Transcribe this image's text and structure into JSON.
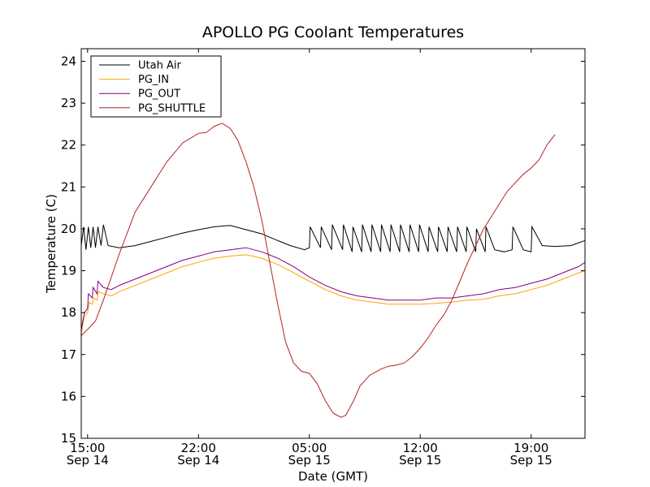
{
  "chart_data": {
    "type": "line",
    "title": "APOLLO PG Coolant Temperatures",
    "xlabel": "Date (GMT)",
    "ylabel": "Temperature (C)",
    "x_unit": "hours since Sep 14 14:00 GMT",
    "xlim": [
      0.6,
      32.4
    ],
    "ylim": [
      15,
      24.3
    ],
    "yticks": [
      15,
      16,
      17,
      18,
      19,
      20,
      21,
      22,
      23,
      24
    ],
    "xticks": [
      {
        "x": 1,
        "time": "15:00",
        "date": "Sep 14"
      },
      {
        "x": 8,
        "time": "22:00",
        "date": "Sep 14"
      },
      {
        "x": 15,
        "time": "05:00",
        "date": "Sep 15"
      },
      {
        "x": 22,
        "time": "12:00",
        "date": "Sep 15"
      },
      {
        "x": 29,
        "time": "19:00",
        "date": "Sep 15"
      }
    ],
    "legend_position": "top-left",
    "series": [
      {
        "name": "Utah Air",
        "color": "#000000",
        "points": [
          [
            0.6,
            19.6
          ],
          [
            0.75,
            20.05
          ],
          [
            0.9,
            19.5
          ],
          [
            1.05,
            20.05
          ],
          [
            1.2,
            19.55
          ],
          [
            1.35,
            20.05
          ],
          [
            1.5,
            19.55
          ],
          [
            1.65,
            20.05
          ],
          [
            1.85,
            19.6
          ],
          [
            2.0,
            20.1
          ],
          [
            2.3,
            19.6
          ],
          [
            3,
            19.55
          ],
          [
            4,
            19.6
          ],
          [
            5,
            19.7
          ],
          [
            6,
            19.8
          ],
          [
            7,
            19.9
          ],
          [
            8,
            19.98
          ],
          [
            9,
            20.05
          ],
          [
            10,
            20.08
          ],
          [
            11,
            19.98
          ],
          [
            12,
            19.88
          ],
          [
            13,
            19.72
          ],
          [
            13.8,
            19.6
          ],
          [
            14.7,
            19.5
          ],
          [
            15.0,
            19.55
          ],
          [
            15.05,
            20.05
          ],
          [
            15.7,
            19.55
          ],
          [
            15.75,
            20.05
          ],
          [
            16.4,
            19.5
          ],
          [
            16.45,
            20.1
          ],
          [
            17.1,
            19.5
          ],
          [
            17.15,
            20.1
          ],
          [
            17.7,
            19.45
          ],
          [
            17.75,
            20.05
          ],
          [
            18.3,
            19.45
          ],
          [
            18.35,
            20.1
          ],
          [
            18.9,
            19.45
          ],
          [
            18.95,
            20.1
          ],
          [
            19.5,
            19.45
          ],
          [
            19.55,
            20.1
          ],
          [
            20.1,
            19.45
          ],
          [
            20.15,
            20.1
          ],
          [
            20.7,
            19.45
          ],
          [
            20.75,
            20.1
          ],
          [
            21.3,
            19.45
          ],
          [
            21.35,
            20.1
          ],
          [
            21.9,
            19.45
          ],
          [
            21.95,
            20.1
          ],
          [
            22.5,
            19.45
          ],
          [
            22.55,
            20.05
          ],
          [
            23.1,
            19.45
          ],
          [
            23.15,
            20.05
          ],
          [
            23.7,
            19.45
          ],
          [
            23.75,
            20.05
          ],
          [
            24.3,
            19.45
          ],
          [
            24.35,
            20.05
          ],
          [
            24.9,
            19.45
          ],
          [
            24.95,
            20.05
          ],
          [
            25.5,
            19.45
          ],
          [
            25.55,
            20.0
          ],
          [
            26.1,
            19.45
          ],
          [
            26.15,
            20.05
          ],
          [
            26.7,
            19.5
          ],
          [
            27.3,
            19.45
          ],
          [
            27.8,
            19.5
          ],
          [
            27.85,
            20.05
          ],
          [
            28.5,
            19.5
          ],
          [
            29.0,
            19.45
          ],
          [
            29.05,
            20.05
          ],
          [
            29.7,
            19.6
          ],
          [
            30.5,
            19.58
          ],
          [
            31.5,
            19.6
          ],
          [
            32.4,
            19.72
          ]
        ]
      },
      {
        "name": "PG_IN",
        "color": "#FFA500",
        "points": [
          [
            0.6,
            17.5
          ],
          [
            0.8,
            17.9
          ],
          [
            1.0,
            18.0
          ],
          [
            1.1,
            18.25
          ],
          [
            1.3,
            18.2
          ],
          [
            1.4,
            18.35
          ],
          [
            1.6,
            18.3
          ],
          [
            1.7,
            18.5
          ],
          [
            2.0,
            18.45
          ],
          [
            2.5,
            18.4
          ],
          [
            3,
            18.5
          ],
          [
            4,
            18.65
          ],
          [
            5,
            18.8
          ],
          [
            6,
            18.95
          ],
          [
            7,
            19.1
          ],
          [
            8,
            19.2
          ],
          [
            9,
            19.3
          ],
          [
            10,
            19.35
          ],
          [
            11,
            19.38
          ],
          [
            12,
            19.3
          ],
          [
            13,
            19.15
          ],
          [
            14,
            18.95
          ],
          [
            15,
            18.75
          ],
          [
            16,
            18.55
          ],
          [
            17,
            18.4
          ],
          [
            18,
            18.3
          ],
          [
            19,
            18.25
          ],
          [
            20,
            18.2
          ],
          [
            21,
            18.2
          ],
          [
            22,
            18.2
          ],
          [
            23,
            18.22
          ],
          [
            24,
            18.25
          ],
          [
            25,
            18.3
          ],
          [
            26,
            18.32
          ],
          [
            27,
            18.4
          ],
          [
            28,
            18.45
          ],
          [
            29,
            18.55
          ],
          [
            30,
            18.65
          ],
          [
            31,
            18.8
          ],
          [
            32,
            18.95
          ],
          [
            32.4,
            19.0
          ]
        ]
      },
      {
        "name": "PG_OUT",
        "color": "#800080",
        "points": [
          [
            0.6,
            17.6
          ],
          [
            0.8,
            18.0
          ],
          [
            1.0,
            18.1
          ],
          [
            1.05,
            18.45
          ],
          [
            1.3,
            18.35
          ],
          [
            1.35,
            18.6
          ],
          [
            1.6,
            18.45
          ],
          [
            1.65,
            18.75
          ],
          [
            2.0,
            18.6
          ],
          [
            2.5,
            18.55
          ],
          [
            3,
            18.65
          ],
          [
            4,
            18.8
          ],
          [
            5,
            18.95
          ],
          [
            6,
            19.1
          ],
          [
            7,
            19.25
          ],
          [
            8,
            19.35
          ],
          [
            9,
            19.45
          ],
          [
            10,
            19.5
          ],
          [
            11,
            19.55
          ],
          [
            12,
            19.45
          ],
          [
            13,
            19.3
          ],
          [
            14,
            19.1
          ],
          [
            15,
            18.85
          ],
          [
            16,
            18.65
          ],
          [
            17,
            18.5
          ],
          [
            18,
            18.4
          ],
          [
            19,
            18.35
          ],
          [
            20,
            18.3
          ],
          [
            21,
            18.3
          ],
          [
            22,
            18.3
          ],
          [
            23,
            18.35
          ],
          [
            24,
            18.35
          ],
          [
            25,
            18.4
          ],
          [
            26,
            18.45
          ],
          [
            27,
            18.55
          ],
          [
            28,
            18.6
          ],
          [
            29,
            18.7
          ],
          [
            30,
            18.8
          ],
          [
            31,
            18.95
          ],
          [
            32,
            19.1
          ],
          [
            32.4,
            19.2
          ]
        ]
      },
      {
        "name": "PG_SHUTTLE",
        "color": "#B22222",
        "points": [
          [
            0.6,
            17.45
          ],
          [
            1,
            17.6
          ],
          [
            1.5,
            17.8
          ],
          [
            2,
            18.3
          ],
          [
            3,
            19.4
          ],
          [
            4,
            20.4
          ],
          [
            5,
            21.0
          ],
          [
            6,
            21.6
          ],
          [
            7,
            22.05
          ],
          [
            8,
            22.28
          ],
          [
            8.5,
            22.3
          ],
          [
            9,
            22.45
          ],
          [
            9.5,
            22.52
          ],
          [
            10,
            22.4
          ],
          [
            10.5,
            22.1
          ],
          [
            11,
            21.6
          ],
          [
            11.5,
            21.0
          ],
          [
            12,
            20.2
          ],
          [
            12.5,
            19.2
          ],
          [
            13,
            18.2
          ],
          [
            13.5,
            17.3
          ],
          [
            14,
            16.8
          ],
          [
            14.5,
            16.6
          ],
          [
            15,
            16.55
          ],
          [
            15.5,
            16.3
          ],
          [
            16,
            15.9
          ],
          [
            16.5,
            15.6
          ],
          [
            17,
            15.5
          ],
          [
            17.3,
            15.55
          ],
          [
            17.8,
            15.9
          ],
          [
            18.2,
            16.25
          ],
          [
            18.8,
            16.5
          ],
          [
            19.5,
            16.65
          ],
          [
            20,
            16.72
          ],
          [
            20.5,
            16.75
          ],
          [
            21,
            16.8
          ],
          [
            21.5,
            16.95
          ],
          [
            22,
            17.15
          ],
          [
            22.5,
            17.4
          ],
          [
            23,
            17.7
          ],
          [
            23.5,
            17.95
          ],
          [
            24,
            18.3
          ],
          [
            24.5,
            18.75
          ],
          [
            25,
            19.2
          ],
          [
            25.5,
            19.6
          ],
          [
            26,
            20.0
          ],
          [
            26.5,
            20.3
          ],
          [
            27,
            20.6
          ],
          [
            27.5,
            20.9
          ],
          [
            28,
            21.1
          ],
          [
            28.5,
            21.3
          ],
          [
            29,
            21.45
          ],
          [
            29.5,
            21.65
          ],
          [
            30,
            22.0
          ],
          [
            30.5,
            22.25
          ]
        ]
      }
    ]
  }
}
